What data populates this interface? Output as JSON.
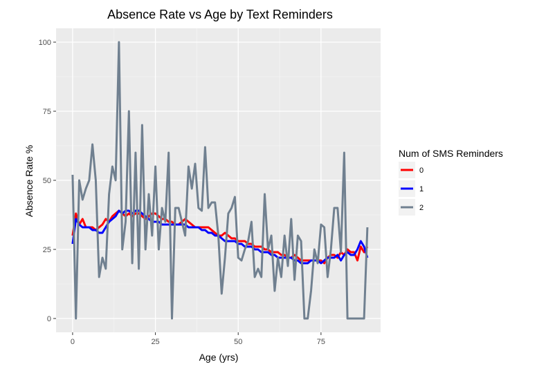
{
  "chart_data": {
    "type": "line",
    "title": "Absence Rate vs Age by Text Reminders",
    "xlabel": "Age (yrs)",
    "ylabel": "Absence Rate %",
    "xlim": [
      -5,
      93
    ],
    "ylim": [
      -5,
      105
    ],
    "xticks": [
      0,
      25,
      50,
      75
    ],
    "yticks": [
      0,
      25,
      50,
      75,
      100
    ],
    "grid": true,
    "legend": {
      "title": "Num of SMS Reminders",
      "position": "right"
    },
    "series": [
      {
        "name": "0",
        "color": "#ff0000",
        "x": [
          0,
          1,
          2,
          3,
          4,
          5,
          6,
          7,
          8,
          9,
          10,
          11,
          12,
          13,
          14,
          15,
          16,
          17,
          18,
          19,
          20,
          21,
          22,
          23,
          24,
          25,
          26,
          27,
          28,
          29,
          30,
          31,
          32,
          33,
          34,
          35,
          36,
          37,
          38,
          39,
          40,
          41,
          42,
          43,
          44,
          45,
          46,
          47,
          48,
          49,
          50,
          51,
          52,
          53,
          54,
          55,
          56,
          57,
          58,
          59,
          60,
          61,
          62,
          63,
          64,
          65,
          66,
          67,
          68,
          69,
          70,
          71,
          72,
          73,
          74,
          75,
          76,
          77,
          78,
          79,
          80,
          81,
          82,
          83,
          84,
          85,
          86,
          87,
          88,
          89
        ],
        "y": [
          30,
          38,
          34,
          36,
          33,
          33,
          33,
          32,
          33,
          34,
          36,
          35,
          37,
          38,
          39,
          38,
          37,
          38,
          37,
          38,
          38,
          37,
          36,
          37,
          38,
          38,
          37,
          36,
          36,
          35,
          35,
          34,
          34,
          35,
          36,
          35,
          34,
          33,
          33,
          33,
          33,
          33,
          32,
          31,
          30,
          30,
          31,
          30,
          29,
          29,
          28,
          28,
          28,
          27,
          27,
          26,
          26,
          26,
          25,
          25,
          24,
          24,
          24,
          23,
          23,
          22,
          22,
          23,
          22,
          21,
          21,
          21,
          21,
          21,
          21,
          21,
          20,
          22,
          23,
          23,
          22,
          24,
          23,
          25,
          24,
          24,
          21,
          26,
          24,
          26
        ]
      },
      {
        "name": "1",
        "color": "#0000ff",
        "x": [
          0,
          1,
          2,
          3,
          4,
          5,
          6,
          7,
          8,
          9,
          10,
          11,
          12,
          13,
          14,
          15,
          16,
          17,
          18,
          19,
          20,
          21,
          22,
          23,
          24,
          25,
          26,
          27,
          28,
          29,
          30,
          31,
          32,
          33,
          34,
          35,
          36,
          37,
          38,
          39,
          40,
          41,
          42,
          43,
          44,
          45,
          46,
          47,
          48,
          49,
          50,
          51,
          52,
          53,
          54,
          55,
          56,
          57,
          58,
          59,
          60,
          61,
          62,
          63,
          64,
          65,
          66,
          67,
          68,
          69,
          70,
          71,
          72,
          73,
          74,
          75,
          76,
          77,
          78,
          79,
          80,
          81,
          82,
          83,
          84,
          85,
          86,
          87,
          88,
          89
        ],
        "y": [
          27,
          36,
          34,
          33,
          33,
          33,
          32,
          32,
          31,
          31,
          33,
          35,
          36,
          37,
          39,
          38,
          39,
          39,
          38,
          39,
          39,
          38,
          37,
          36,
          35,
          35,
          35,
          34,
          34,
          34,
          34,
          34,
          34,
          34,
          34,
          33,
          33,
          33,
          33,
          32,
          32,
          31,
          31,
          30,
          30,
          29,
          28,
          28,
          28,
          28,
          27,
          27,
          26,
          26,
          26,
          25,
          25,
          24,
          24,
          24,
          23,
          23,
          22,
          22,
          22,
          22,
          22,
          21,
          21,
          20,
          20,
          20,
          21,
          21,
          21,
          20,
          21,
          22,
          22,
          22,
          23,
          21,
          23,
          24,
          23,
          23,
          25,
          28,
          26,
          22
        ]
      },
      {
        "name": "2",
        "color": "#708090",
        "x": [
          0,
          1,
          2,
          3,
          4,
          5,
          6,
          7,
          8,
          9,
          10,
          11,
          12,
          13,
          14,
          15,
          16,
          17,
          18,
          19,
          20,
          21,
          22,
          23,
          24,
          25,
          26,
          27,
          28,
          29,
          30,
          31,
          32,
          33,
          34,
          35,
          36,
          37,
          38,
          39,
          40,
          41,
          42,
          43,
          44,
          45,
          46,
          47,
          48,
          49,
          50,
          51,
          52,
          53,
          54,
          55,
          56,
          57,
          58,
          59,
          60,
          61,
          62,
          63,
          64,
          65,
          66,
          67,
          68,
          69,
          70,
          71,
          72,
          73,
          74,
          75,
          76,
          77,
          78,
          79,
          80,
          81,
          82,
          83,
          84,
          85,
          86,
          87,
          88,
          89
        ],
        "y": [
          52,
          0,
          50,
          43,
          47,
          50,
          63,
          50,
          15,
          22,
          18,
          45,
          55,
          50,
          100,
          25,
          35,
          75,
          20,
          60,
          18,
          70,
          25,
          45,
          30,
          55,
          25,
          40,
          35,
          60,
          0,
          40,
          40,
          35,
          30,
          55,
          47,
          56,
          40,
          39,
          62,
          40,
          42,
          42,
          30,
          9,
          22,
          38,
          40,
          44,
          22,
          21,
          25,
          28,
          35,
          15,
          18,
          15,
          45,
          25,
          30,
          10,
          22,
          15,
          30,
          19,
          36,
          14,
          30,
          28,
          0,
          0,
          10,
          25,
          20,
          34,
          33,
          15,
          25,
          40,
          40,
          24,
          60,
          0,
          0,
          0,
          0,
          0,
          0,
          33
        ]
      }
    ]
  }
}
